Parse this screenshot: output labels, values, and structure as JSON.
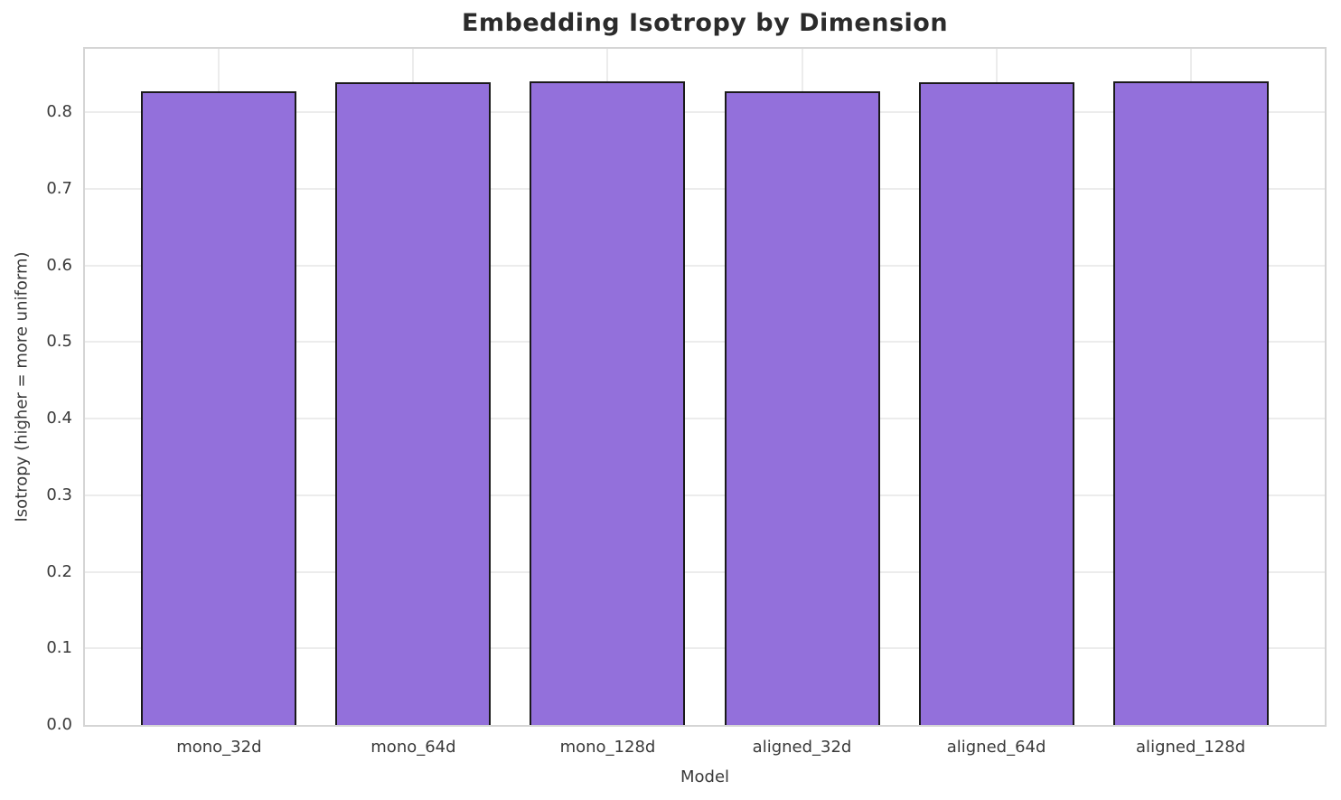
{
  "chart_data": {
    "type": "bar",
    "title": "Embedding Isotropy by Dimension",
    "xlabel": "Model",
    "ylabel": "Isotropy (higher = more uniform)",
    "categories": [
      "mono_32d",
      "mono_64d",
      "mono_128d",
      "aligned_32d",
      "aligned_64d",
      "aligned_128d"
    ],
    "values": [
      0.827,
      0.839,
      0.84,
      0.828,
      0.839,
      0.841
    ],
    "ylim": [
      0,
      0.883
    ],
    "yticks": [
      0.0,
      0.1,
      0.2,
      0.3,
      0.4,
      0.5,
      0.6,
      0.7,
      0.8
    ],
    "ytick_labels": [
      "0.0",
      "0.1",
      "0.2",
      "0.3",
      "0.4",
      "0.5",
      "0.6",
      "0.7",
      "0.8"
    ],
    "grid": true,
    "legend_position": "none",
    "bar_width_fraction": 0.8,
    "axis_margin_fraction": 0.69,
    "colors": {
      "bar_fill": "#9370DB",
      "bar_edge": "#1a1a1a",
      "grid": "#ececec",
      "spine": "#d5d5d5",
      "tick_text": "#3a3a3a",
      "title_text": "#2b2b2b"
    }
  }
}
